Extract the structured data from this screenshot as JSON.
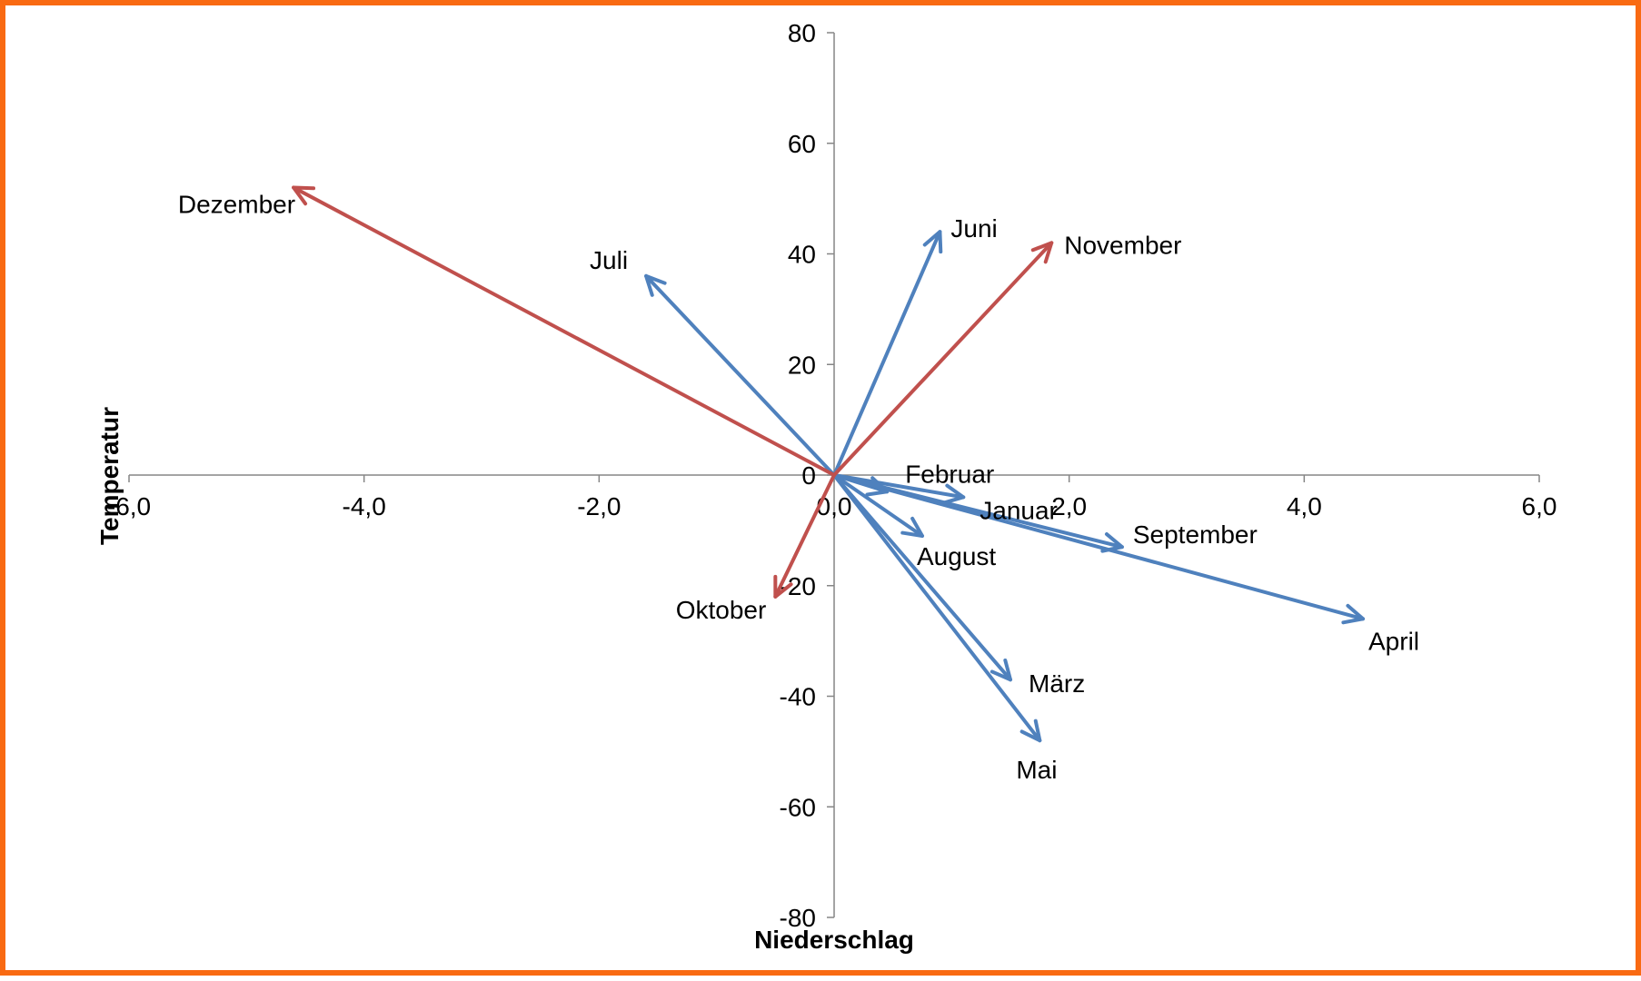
{
  "chart_data": {
    "type": "scatter",
    "style": "vectors-from-origin",
    "xlabel": "Niederschlag",
    "ylabel": "Temperatur",
    "xlim": [
      -6,
      6
    ],
    "ylim": [
      -80,
      80
    ],
    "xticks": [
      "-6,0",
      "-4,0",
      "-2,0",
      "0,0",
      "2,0",
      "4,0",
      "6,0"
    ],
    "yticks": [
      "-80",
      "-60",
      "-40",
      "-20",
      "0",
      "20",
      "40",
      "60",
      "80"
    ],
    "grid": false,
    "legend": "none",
    "colors": {
      "blue": "#4F81BD",
      "red": "#C0504D",
      "border": "#F96A12"
    },
    "points": [
      {
        "label": "Januar",
        "x": 1.1,
        "y": -4,
        "color": "blue"
      },
      {
        "label": "Februar",
        "x": 0.45,
        "y": -3,
        "color": "blue"
      },
      {
        "label": "März",
        "x": 1.5,
        "y": -37,
        "color": "blue"
      },
      {
        "label": "April",
        "x": 4.5,
        "y": -26,
        "color": "blue"
      },
      {
        "label": "Mai",
        "x": 1.75,
        "y": -48,
        "color": "blue"
      },
      {
        "label": "Juni",
        "x": 0.9,
        "y": 44,
        "color": "blue"
      },
      {
        "label": "Juli",
        "x": -1.6,
        "y": 36,
        "color": "blue"
      },
      {
        "label": "August",
        "x": 0.75,
        "y": -11,
        "color": "blue"
      },
      {
        "label": "September",
        "x": 2.45,
        "y": -13,
        "color": "blue"
      },
      {
        "label": "Oktober",
        "x": -0.5,
        "y": -22,
        "color": "red"
      },
      {
        "label": "November",
        "x": 1.85,
        "y": 42,
        "color": "red"
      },
      {
        "label": "Dezember",
        "x": -4.6,
        "y": 52,
        "color": "red"
      }
    ]
  }
}
